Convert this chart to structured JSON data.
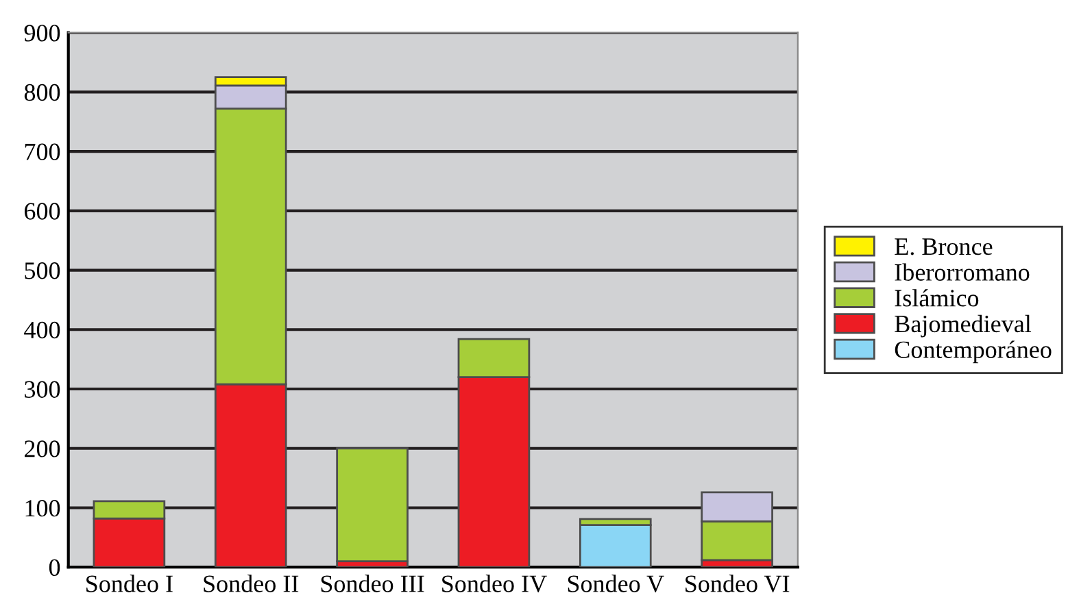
{
  "chart_data": {
    "type": "bar",
    "stacked": true,
    "categories": [
      "Sondeo I",
      "Sondeo II",
      "Sondeo III",
      "Sondeo IV",
      "Sondeo V",
      "Sondeo VI"
    ],
    "series": [
      {
        "name": "Contemporáneo",
        "color": "#8ad6f5",
        "values": [
          0,
          0,
          0,
          0,
          71,
          0
        ]
      },
      {
        "name": "Bajomedieval",
        "color": "#ed1c24",
        "values": [
          82,
          308,
          10,
          320,
          0,
          12
        ]
      },
      {
        "name": "Islámico",
        "color": "#a6ce39",
        "values": [
          29,
          464,
          190,
          64,
          10,
          65
        ]
      },
      {
        "name": "Iberorromano",
        "color": "#c8c4e0",
        "values": [
          0,
          39,
          0,
          0,
          0,
          49
        ]
      },
      {
        "name": "E. Bronce",
        "color": "#fff200",
        "values": [
          0,
          14,
          0,
          0,
          0,
          0
        ]
      }
    ],
    "ylim": [
      0,
      900
    ],
    "yticks": [
      0,
      100,
      200,
      300,
      400,
      500,
      600,
      700,
      800,
      900
    ],
    "grid": "y",
    "legend": "right"
  }
}
